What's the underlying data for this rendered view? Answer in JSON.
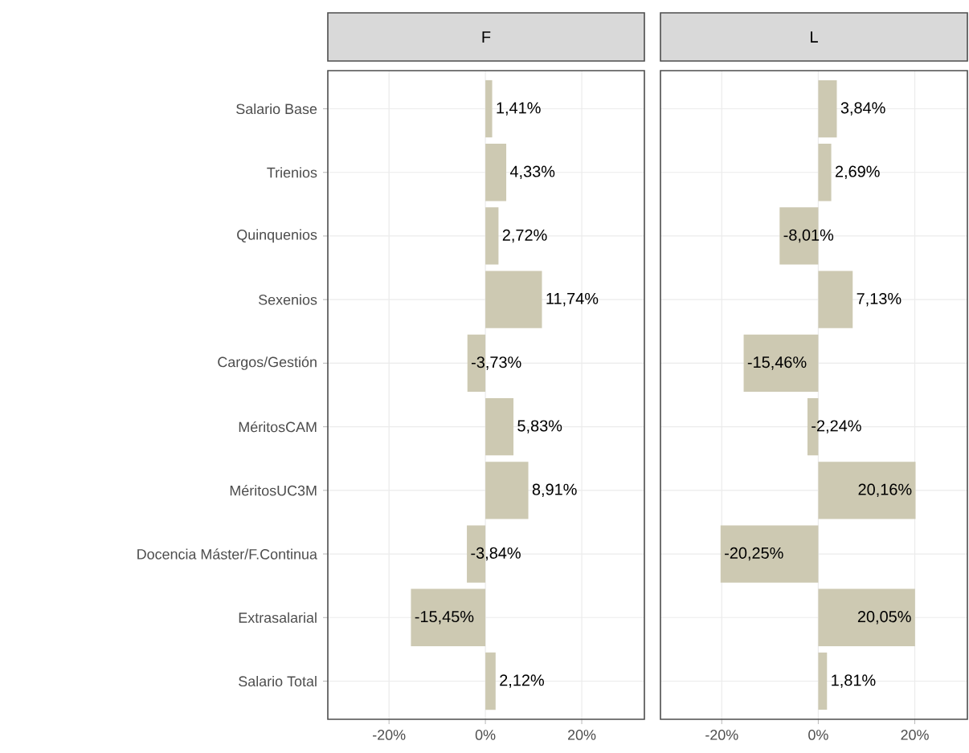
{
  "chart_data": [
    {
      "type": "bar",
      "orientation": "horizontal",
      "title": "F",
      "categories": [
        "Salario Base",
        "Trienios",
        "Quinquenios",
        "Sexenios",
        "Cargos/Gestión",
        "MéritosCAM",
        "MéritosUC3M",
        "Docencia Máster/F.Continua",
        "Extrasalarial",
        "Salario Total"
      ],
      "values": [
        1.41,
        4.33,
        2.72,
        11.74,
        -3.73,
        5.83,
        8.91,
        -3.84,
        -15.45,
        2.12
      ],
      "value_labels": [
        "1,41%",
        "4,33%",
        "2,72%",
        "11,74%",
        "-3,73%",
        "5,83%",
        "8,91%",
        "-3,84%",
        "-15,45%",
        "2,12%"
      ],
      "color": "#cdc9b2",
      "xlim": [
        -32.7,
        33
      ],
      "xticks": [
        {
          "value": -20,
          "label": "-20%"
        },
        {
          "value": 0,
          "label": "0%"
        },
        {
          "value": 20,
          "label": "20%"
        }
      ],
      "grid": true
    },
    {
      "type": "bar",
      "orientation": "horizontal",
      "title": "L",
      "categories": [
        null,
        null,
        null,
        null,
        null,
        null,
        null,
        null,
        null,
        null
      ],
      "values": [
        3.84,
        2.69,
        -8.01,
        7.13,
        -15.46,
        -2.24,
        20.16,
        -20.25,
        20.05,
        1.81
      ],
      "value_labels": [
        "3,84%",
        "2,69%",
        "-8,01%",
        "7,13%",
        "-15,46%",
        "-2,24%",
        "20,16%",
        "-20,25%",
        "20,05%",
        "1,81%"
      ],
      "color": "#cdc9b2",
      "xlim": [
        -32.7,
        30.9
      ],
      "xticks": [
        {
          "value": -20,
          "label": "-20%"
        },
        {
          "value": 0,
          "label": "0%"
        },
        {
          "value": 20,
          "label": "20%"
        }
      ],
      "grid": true,
      "tick_labels": "x"
    }
  ]
}
